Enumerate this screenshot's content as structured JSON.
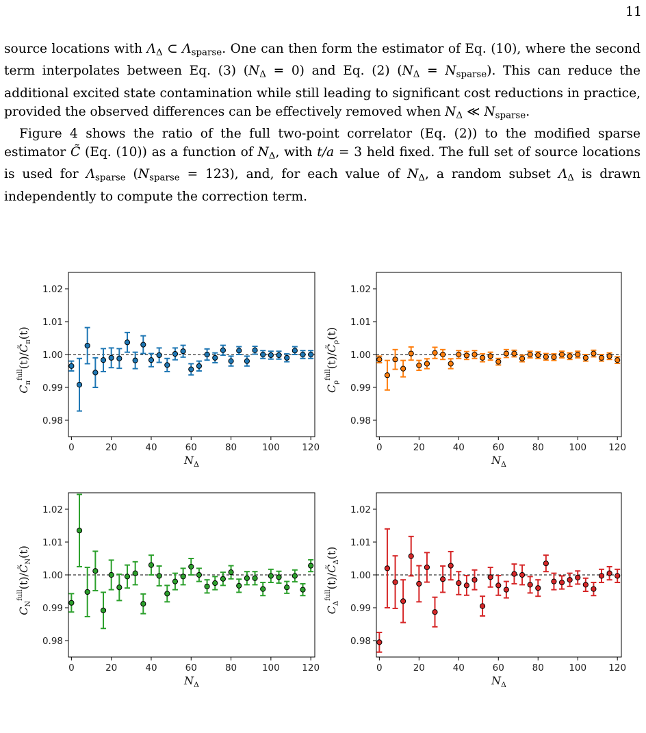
{
  "page": {
    "number": "11"
  },
  "text": {
    "p1": [
      "source locations with ",
      "Λ",
      "Δ",
      " ⊂ ",
      "Λ",
      "sparse",
      ". One can then form the estimator of Eq. (10), where the second term interpolates between Eq. (3) (",
      "N",
      "Δ",
      " = 0) and Eq. (2) (",
      "N",
      "Δ",
      " = ",
      "N",
      "sparse",
      "). This can reduce the additional excited state contamination while still leading to significant cost reductions in practice, provided the observed differences can be effectively removed when ",
      "N",
      "Δ",
      " ≪ ",
      "N",
      "sparse",
      "."
    ],
    "p2": [
      "Figure 4 shows the ratio of the full two-point correlator (Eq. (2)) to the modified sparse estimator ",
      "C̃",
      " (Eq. (10)) as a function of ",
      "N",
      "Δ",
      ", with ",
      "t/a",
      " = 3 held fixed. The full set of source locations is used for ",
      "Λ",
      "sparse",
      " (",
      "N",
      "sparse",
      " = 123), and, for each value of ",
      "N",
      "Δ",
      ", a random subset ",
      "Λ",
      "Δ",
      " is drawn independently to compute the correction term."
    ]
  },
  "chart_data": [
    {
      "type": "scatter",
      "color": "#1f77b4",
      "ylabel": "C_π^full(t)/C̃_π(t)",
      "ylabel_parts": [
        "C",
        "π",
        "full",
        "(t)/",
        "C̃",
        "π",
        "(t)"
      ],
      "xlabel_parts": [
        "N",
        "Δ"
      ],
      "xlim": [
        -1.5,
        122
      ],
      "ylim": [
        0.975,
        1.025
      ],
      "xticks": [
        0,
        20,
        40,
        60,
        80,
        100,
        120
      ],
      "yticks": [
        0.98,
        0.99,
        1.0,
        1.01,
        1.02
      ],
      "yticklabels": [
        "0.98",
        "0.99",
        "1.00",
        "1.01",
        "1.02"
      ],
      "xticklabels": [
        "0",
        "20",
        "40",
        "60",
        "80",
        "100",
        "120"
      ],
      "reference_line": 1.0,
      "x": [
        0,
        4,
        8,
        12,
        16,
        20,
        24,
        28,
        32,
        36,
        40,
        44,
        48,
        52,
        56,
        60,
        64,
        68,
        72,
        76,
        80,
        84,
        88,
        92,
        96,
        100,
        104,
        108,
        112,
        116,
        120
      ],
      "y": [
        0.9965,
        0.9908,
        1.0027,
        0.9945,
        0.9983,
        0.999,
        0.9988,
        1.0037,
        0.9982,
        1.003,
        0.9983,
        0.9998,
        0.9968,
        1.0002,
        1.001,
        0.9955,
        0.9965,
        1.0,
        0.999,
        1.0013,
        0.998,
        1.0012,
        0.998,
        1.0013,
        1.0,
        0.9998,
        0.9998,
        0.999,
        1.0012,
        1.0,
        1.0
      ],
      "err": [
        0.0015,
        0.008,
        0.0055,
        0.0045,
        0.0035,
        0.003,
        0.003,
        0.003,
        0.0025,
        0.0027,
        0.002,
        0.0022,
        0.002,
        0.0018,
        0.0018,
        0.0017,
        0.0015,
        0.0017,
        0.0015,
        0.0015,
        0.0015,
        0.0012,
        0.0015,
        0.0012,
        0.0012,
        0.0012,
        0.0012,
        0.0012,
        0.0012,
        0.0012,
        0.0012
      ]
    },
    {
      "type": "scatter",
      "color": "#ff7f0e",
      "ylabel": "C_ρ^full(t)/C̃_ρ(t)",
      "ylabel_parts": [
        "C",
        "ρ",
        "full",
        "(t)/",
        "C̃",
        "ρ",
        "(t)"
      ],
      "xlabel_parts": [
        "N",
        "Δ"
      ],
      "xlim": [
        -1.5,
        122
      ],
      "ylim": [
        0.975,
        1.025
      ],
      "xticks": [
        0,
        20,
        40,
        60,
        80,
        100,
        120
      ],
      "yticks": [
        0.98,
        0.99,
        1.0,
        1.01,
        1.02
      ],
      "yticklabels": [
        "0.98",
        "0.99",
        "1.00",
        "1.01",
        "1.02"
      ],
      "xticklabels": [
        "0",
        "20",
        "40",
        "60",
        "80",
        "100",
        "120"
      ],
      "reference_line": 1.0,
      "x": [
        0,
        4,
        8,
        12,
        16,
        20,
        24,
        28,
        32,
        36,
        40,
        44,
        48,
        52,
        56,
        60,
        64,
        68,
        72,
        76,
        80,
        84,
        88,
        92,
        96,
        100,
        104,
        108,
        112,
        116,
        120
      ],
      "y": [
        0.9985,
        0.9937,
        0.9985,
        0.9957,
        1.0003,
        0.9967,
        0.9972,
        1.0005,
        1.0,
        0.9972,
        1.0,
        0.9997,
        1.0,
        0.999,
        0.9995,
        0.9978,
        1.0003,
        1.0003,
        0.9988,
        1.0,
        0.9998,
        0.9993,
        0.9992,
        1.0,
        0.9995,
        1.0,
        0.999,
        1.0003,
        0.999,
        0.9995,
        0.9983
      ],
      "err": [
        0.001,
        0.0045,
        0.003,
        0.0025,
        0.002,
        0.0015,
        0.0015,
        0.0017,
        0.0015,
        0.0015,
        0.0012,
        0.0012,
        0.0012,
        0.0012,
        0.0012,
        0.001,
        0.0012,
        0.001,
        0.001,
        0.001,
        0.001,
        0.001,
        0.001,
        0.001,
        0.001,
        0.001,
        0.001,
        0.001,
        0.001,
        0.001,
        0.001
      ]
    },
    {
      "type": "scatter",
      "color": "#2ca02c",
      "ylabel": "C_N^full(t)/C̃_N(t)",
      "ylabel_parts": [
        "C",
        "N",
        "full",
        "(t)/",
        "C̃",
        "N",
        "(t)"
      ],
      "xlabel_parts": [
        "N",
        "Δ"
      ],
      "xlim": [
        -1.5,
        122
      ],
      "ylim": [
        0.975,
        1.025
      ],
      "xticks": [
        0,
        20,
        40,
        60,
        80,
        100,
        120
      ],
      "yticks": [
        0.98,
        0.99,
        1.0,
        1.01,
        1.02
      ],
      "yticklabels": [
        "0.98",
        "0.99",
        "1.00",
        "1.01",
        "1.02"
      ],
      "xticklabels": [
        "0",
        "20",
        "40",
        "60",
        "80",
        "100",
        "120"
      ],
      "reference_line": 1.0,
      "x": [
        0,
        4,
        8,
        12,
        16,
        20,
        24,
        28,
        32,
        36,
        40,
        44,
        48,
        52,
        56,
        60,
        64,
        68,
        72,
        76,
        80,
        84,
        88,
        92,
        96,
        100,
        104,
        108,
        112,
        116,
        120
      ],
      "y": [
        0.9915,
        1.0135,
        0.9948,
        1.0012,
        0.9892,
        1.0,
        0.9962,
        0.9995,
        1.0005,
        0.9912,
        1.003,
        0.9997,
        0.9943,
        0.998,
        0.9995,
        1.0025,
        1.0,
        0.9965,
        0.9975,
        0.9988,
        1.0008,
        0.9967,
        0.999,
        0.999,
        0.9957,
        0.9997,
        0.9993,
        0.9962,
        0.9997,
        0.9955,
        1.0028
      ],
      "err": [
        0.0028,
        0.011,
        0.0075,
        0.006,
        0.0055,
        0.0045,
        0.004,
        0.0035,
        0.0035,
        0.003,
        0.003,
        0.003,
        0.0025,
        0.0025,
        0.0025,
        0.0025,
        0.002,
        0.002,
        0.002,
        0.002,
        0.002,
        0.002,
        0.002,
        0.002,
        0.002,
        0.002,
        0.0018,
        0.0018,
        0.0018,
        0.0018,
        0.0018
      ]
    },
    {
      "type": "scatter",
      "color": "#d62728",
      "ylabel": "C_Δ^full(t)/C̃_Δ(t)",
      "ylabel_parts": [
        "C",
        "Δ",
        "full",
        "(t)/",
        "C̃",
        "Δ",
        "(t)"
      ],
      "xlabel_parts": [
        "N",
        "Δ"
      ],
      "xlim": [
        -1.5,
        122
      ],
      "ylim": [
        0.975,
        1.025
      ],
      "xticks": [
        0,
        20,
        40,
        60,
        80,
        100,
        120
      ],
      "yticks": [
        0.98,
        0.99,
        1.0,
        1.01,
        1.02
      ],
      "yticklabels": [
        "0.98",
        "0.99",
        "1.00",
        "1.01",
        "1.02"
      ],
      "xticklabels": [
        "0",
        "20",
        "40",
        "60",
        "80",
        "100",
        "120"
      ],
      "reference_line": 1.0,
      "x": [
        0,
        4,
        8,
        12,
        16,
        20,
        24,
        28,
        32,
        36,
        40,
        44,
        48,
        52,
        56,
        60,
        64,
        68,
        72,
        76,
        80,
        84,
        88,
        92,
        96,
        100,
        104,
        108,
        112,
        116,
        120
      ],
      "y": [
        0.9795,
        1.002,
        0.9978,
        0.992,
        1.0057,
        0.9973,
        1.0023,
        0.9887,
        0.9987,
        1.0028,
        0.9975,
        0.9968,
        0.9985,
        0.9905,
        0.9993,
        0.9968,
        0.9955,
        1.0003,
        1.0,
        0.997,
        0.996,
        1.0035,
        0.998,
        0.9977,
        0.9985,
        0.9992,
        0.997,
        0.9957,
        0.9997,
        1.0005,
        0.9997
      ],
      "err": [
        0.003,
        0.012,
        0.008,
        0.0065,
        0.006,
        0.0055,
        0.0045,
        0.0045,
        0.004,
        0.0043,
        0.0035,
        0.003,
        0.003,
        0.003,
        0.003,
        0.003,
        0.0025,
        0.003,
        0.003,
        0.0025,
        0.0025,
        0.0025,
        0.0025,
        0.002,
        0.002,
        0.002,
        0.002,
        0.002,
        0.002,
        0.002,
        0.002
      ]
    }
  ]
}
